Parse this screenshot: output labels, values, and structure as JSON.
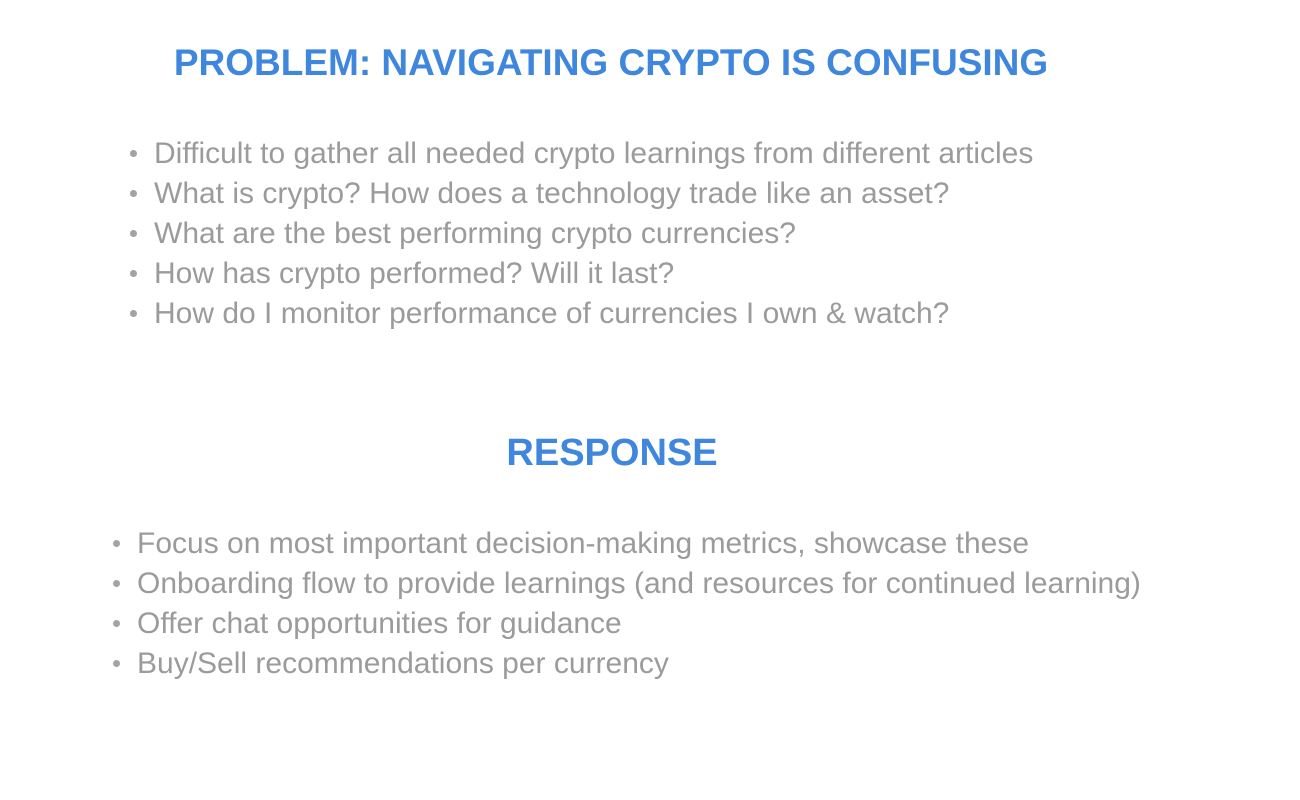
{
  "problem": {
    "title": "PROBLEM: NAVIGATING CRYPTO IS CONFUSING",
    "items": [
      "Difficult to gather all needed crypto learnings from different articles",
      "What is crypto? How does a technology trade like an asset?",
      "What are the best performing crypto currencies?",
      "How has crypto performed? Will it last?",
      "How do I monitor performance of currencies I own & watch?"
    ]
  },
  "response": {
    "title": "RESPONSE",
    "items": [
      "Focus on most important decision-making metrics, showcase these",
      "Onboarding flow to provide learnings (and resources for continued learning)",
      "Offer chat opportunities for guidance",
      "Buy/Sell recommendations per currency"
    ]
  },
  "colors": {
    "heading": "#3f86dd",
    "body_text": "#9b9b9b",
    "background": "#ffffff"
  }
}
